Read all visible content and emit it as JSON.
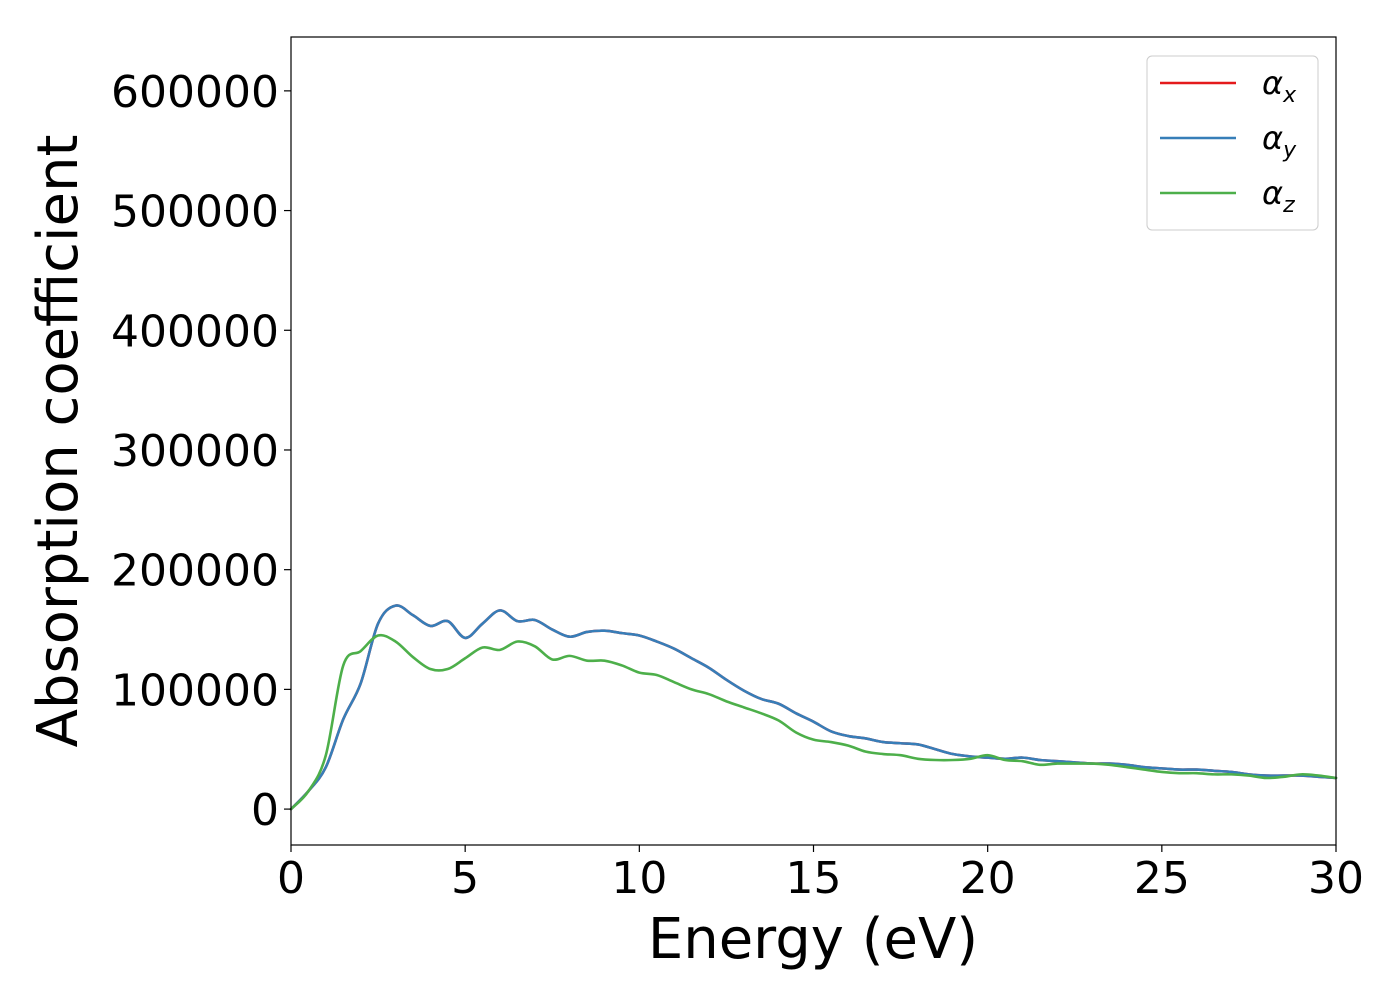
{
  "chart_data": {
    "type": "line",
    "title": "",
    "xlabel": "Energy (eV)",
    "ylabel": "Absorption coefficient",
    "xlim": [
      0,
      30
    ],
    "ylim": [
      -30000,
      645000
    ],
    "xticks": [
      0,
      5,
      10,
      15,
      20,
      25,
      30
    ],
    "yticks": [
      0,
      100000,
      200000,
      300000,
      400000,
      500000,
      600000
    ],
    "grid": false,
    "legend_position": "top-right",
    "series": [
      {
        "name": "α",
        "subscript": "x",
        "color": "#e41a1c",
        "x": [
          0,
          0.5,
          1.0,
          1.5,
          2.0,
          2.5,
          3.0,
          3.5,
          4.0,
          4.5,
          5.0,
          5.5,
          6.0,
          6.5,
          7.0,
          7.5,
          8.0,
          8.5,
          9.0,
          9.5,
          10.0,
          10.5,
          11.0,
          11.5,
          12.0,
          12.5,
          13.0,
          13.5,
          14.0,
          14.5,
          15.0,
          15.5,
          16.0,
          16.5,
          17.0,
          17.5,
          18.0,
          18.5,
          19.0,
          19.5,
          20.0,
          20.5,
          21.0,
          21.5,
          22.0,
          22.5,
          23.0,
          23.5,
          24.0,
          24.5,
          25.0,
          25.5,
          26.0,
          26.5,
          27.0,
          27.5,
          28.0,
          28.5,
          29.0,
          29.5,
          30.0
        ],
        "values": [
          0,
          15000,
          35000,
          75000,
          105000,
          155000,
          170000,
          162000,
          153000,
          157000,
          143000,
          155000,
          166000,
          157000,
          158000,
          150000,
          144000,
          148000,
          149000,
          147000,
          145000,
          140000,
          134000,
          126000,
          118000,
          108000,
          99000,
          92000,
          88000,
          80000,
          73000,
          65000,
          61000,
          59000,
          56000,
          55000,
          54000,
          50000,
          46000,
          44000,
          43000,
          42000,
          43000,
          41000,
          40000,
          39000,
          38000,
          38000,
          37000,
          35000,
          34000,
          33000,
          33000,
          32000,
          31000,
          29000,
          28000,
          28000,
          28000,
          27000,
          26000
        ]
      },
      {
        "name": "α",
        "subscript": "y",
        "color": "#377eb8",
        "x": [
          0,
          0.5,
          1.0,
          1.5,
          2.0,
          2.5,
          3.0,
          3.5,
          4.0,
          4.5,
          5.0,
          5.5,
          6.0,
          6.5,
          7.0,
          7.5,
          8.0,
          8.5,
          9.0,
          9.5,
          10.0,
          10.5,
          11.0,
          11.5,
          12.0,
          12.5,
          13.0,
          13.5,
          14.0,
          14.5,
          15.0,
          15.5,
          16.0,
          16.5,
          17.0,
          17.5,
          18.0,
          18.5,
          19.0,
          19.5,
          20.0,
          20.5,
          21.0,
          21.5,
          22.0,
          22.5,
          23.0,
          23.5,
          24.0,
          24.5,
          25.0,
          25.5,
          26.0,
          26.5,
          27.0,
          27.5,
          28.0,
          28.5,
          29.0,
          29.5,
          30.0
        ],
        "values": [
          0,
          15000,
          35000,
          75000,
          105000,
          155000,
          170000,
          162000,
          153000,
          157000,
          143000,
          155000,
          166000,
          157000,
          158000,
          150000,
          144000,
          148000,
          149000,
          147000,
          145000,
          140000,
          134000,
          126000,
          118000,
          108000,
          99000,
          92000,
          88000,
          80000,
          73000,
          65000,
          61000,
          59000,
          56000,
          55000,
          54000,
          50000,
          46000,
          44000,
          43000,
          42000,
          43000,
          41000,
          40000,
          39000,
          38000,
          38000,
          37000,
          35000,
          34000,
          33000,
          33000,
          32000,
          31000,
          29000,
          28000,
          28000,
          28000,
          27000,
          26000
        ]
      },
      {
        "name": "α",
        "subscript": "z",
        "color": "#4daf4a",
        "x": [
          0,
          0.5,
          1.0,
          1.5,
          2.0,
          2.5,
          3.0,
          3.5,
          4.0,
          4.5,
          5.0,
          5.5,
          6.0,
          6.5,
          7.0,
          7.5,
          8.0,
          8.5,
          9.0,
          9.5,
          10.0,
          10.5,
          11.0,
          11.5,
          12.0,
          12.5,
          13.0,
          13.5,
          14.0,
          14.5,
          15.0,
          15.5,
          16.0,
          16.5,
          17.0,
          17.5,
          18.0,
          18.5,
          19.0,
          19.5,
          20.0,
          20.5,
          21.0,
          21.5,
          22.0,
          22.5,
          23.0,
          23.5,
          24.0,
          24.5,
          25.0,
          25.5,
          26.0,
          26.5,
          27.0,
          27.5,
          28.0,
          28.5,
          29.0,
          29.5,
          30.0
        ],
        "values": [
          0,
          15000,
          45000,
          120000,
          132000,
          145000,
          140000,
          127000,
          117000,
          117000,
          126000,
          135000,
          133000,
          140000,
          136000,
          125000,
          128000,
          124000,
          124000,
          120000,
          114000,
          112000,
          106000,
          100000,
          96000,
          90000,
          85000,
          80000,
          74000,
          64000,
          58000,
          56000,
          53000,
          48000,
          46000,
          45000,
          42000,
          41000,
          41000,
          42000,
          45000,
          41000,
          40000,
          37000,
          38000,
          38000,
          38000,
          37000,
          35000,
          33000,
          31000,
          30000,
          30000,
          29000,
          29000,
          28000,
          26000,
          27000,
          29000,
          28000,
          26000
        ]
      }
    ]
  }
}
